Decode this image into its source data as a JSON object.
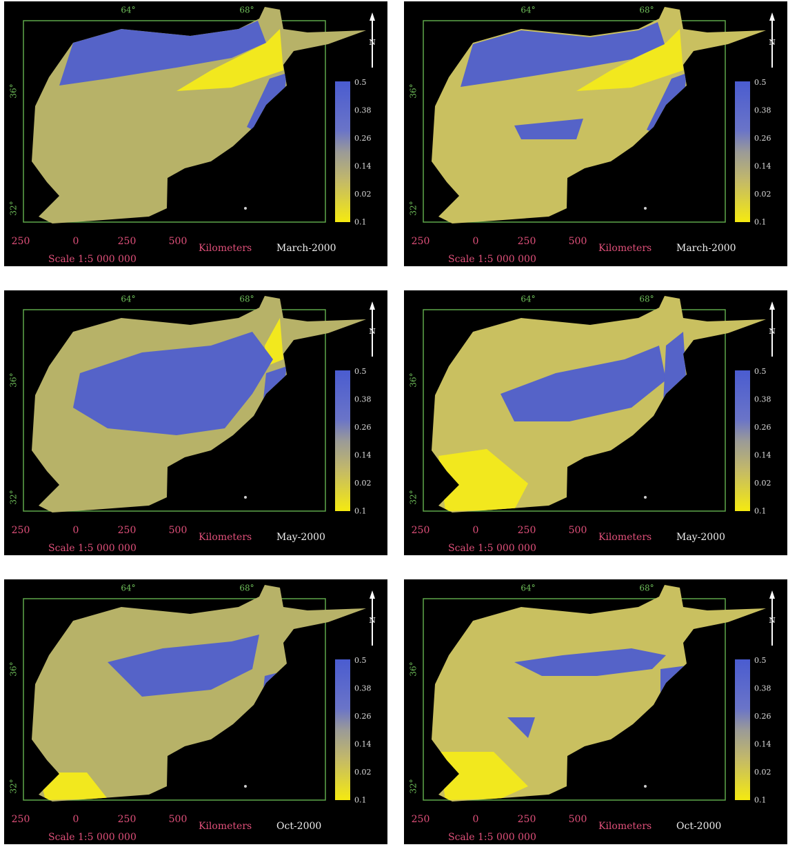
{
  "legend": {
    "lon_labels": [
      "64°",
      "68°"
    ],
    "lat_labels": [
      "36°",
      "32°"
    ],
    "colorbar_labels": [
      "0.5",
      "0.38",
      "0.26",
      "0.14",
      "0.02",
      "0.1"
    ],
    "scale_ticks": [
      "250",
      "0",
      "250",
      "500"
    ],
    "scale_unit": "Kilometers",
    "scale_text": "Scale 1:5 000 000",
    "north": "N"
  },
  "panels": [
    {
      "date": "March-2000"
    },
    {
      "date": "March-2000"
    },
    {
      "date": "May-2000"
    },
    {
      "date": "May-2000"
    },
    {
      "date": "Oct-2000"
    },
    {
      "date": "Oct-2000"
    }
  ]
}
